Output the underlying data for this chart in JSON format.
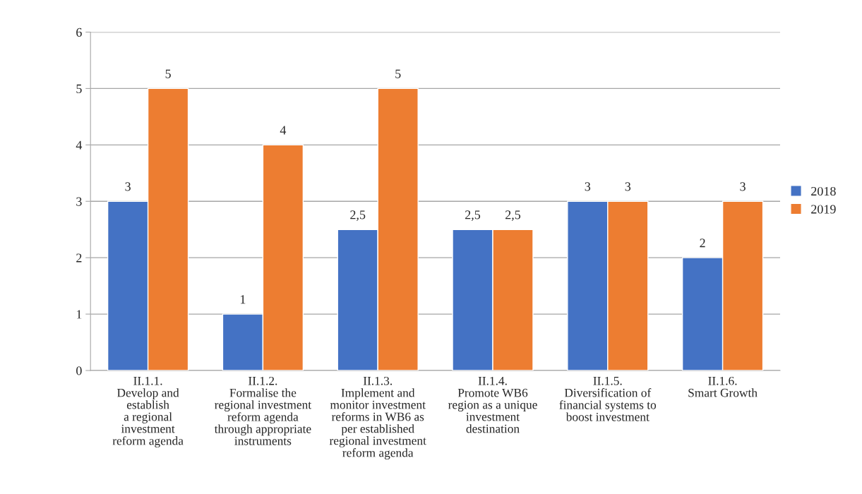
{
  "chart_data": {
    "type": "bar",
    "categories": [
      "II.1.1.\nDevelop and\nestablish\na regional\ninvestment\nreform agenda",
      "II.1.2.\nFormalise the\nregional investment\nreform agenda\nthrough appropriate\ninstruments",
      "II.1.3.\nImplement and\nmonitor investment\nreforms in WB6 as\nper established\nregional investment\nreform agenda",
      "II.1.4.\nPromote WB6\nregion as a unique\ninvestment\ndestination",
      "II.1.5.\nDiversification of\nfinancial systems to\nboost investment",
      "II.1.6.\nSmart Growth"
    ],
    "series": [
      {
        "name": "2018",
        "color": "#4472c4",
        "values": [
          3,
          1,
          2.5,
          2.5,
          3,
          2
        ],
        "value_labels": [
          "3",
          "1",
          "2,5",
          "2,5",
          "3",
          "2"
        ]
      },
      {
        "name": "2019",
        "color": "#ed7d31",
        "values": [
          5,
          4,
          5,
          2.5,
          3,
          3
        ],
        "value_labels": [
          "5",
          "4",
          "5",
          "2,5",
          "3",
          "3"
        ]
      }
    ],
    "ylim": [
      0,
      6
    ],
    "yticks": [
      0,
      1,
      2,
      3,
      4,
      5,
      6
    ],
    "grid": "y",
    "legend": "right"
  }
}
